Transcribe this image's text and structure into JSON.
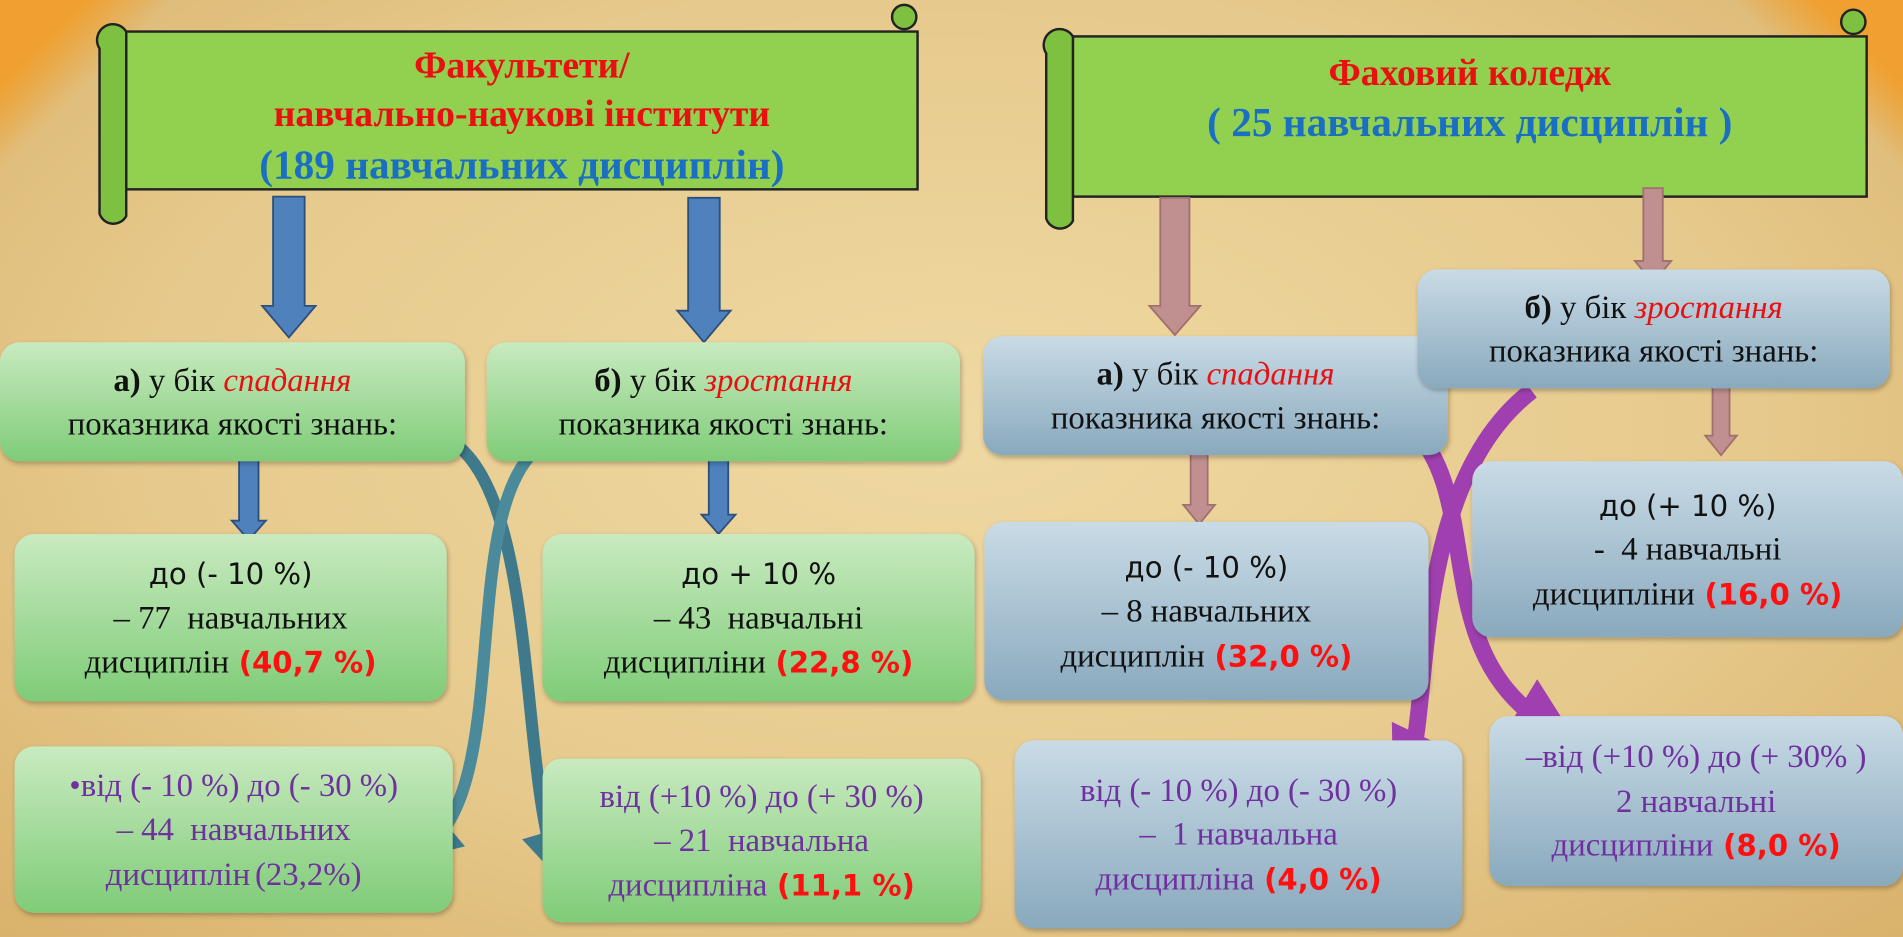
{
  "left": {
    "title": [
      "Факультети/",
      "навчально-наукові  інститути",
      "(189 навчальних дисциплін)"
    ],
    "decrease": {
      "marker": "а)",
      "prefix": " у бік ",
      "direction": "спадання",
      "line2": "показника якості знань:"
    },
    "increase": {
      "marker": "б)",
      "prefix": " у бік ",
      "direction": "зростання",
      "line2": "показника якості знань:"
    },
    "decrease_items": [
      {
        "range": "до (- 10 %)",
        "count": "– 77  навчальних",
        "unit": "дисциплін",
        "percent": "(40,7 %)"
      },
      {
        "range": "•від (- 10 %) до (- 30 %)",
        "count": "– 44  навчальних",
        "unit": "дисциплін",
        "percent": "(23,2%)"
      }
    ],
    "increase_items": [
      {
        "range": "до + 10 %",
        "count": "– 43  навчальні",
        "unit": "дисципліни",
        "percent": "(22,8 %)"
      },
      {
        "range": "від (+10 %) до (+ 30 %)",
        "count": "– 21  навчальна",
        "unit": "дисципліна",
        "percent": "(11,1 %)"
      }
    ]
  },
  "right": {
    "title": [
      "Фаховий коледж",
      "( 25 навчальних дисциплін )"
    ],
    "decrease": {
      "marker": "а)",
      "prefix": " у бік ",
      "direction": "спадання",
      "line2": "показника якості знань:"
    },
    "increase": {
      "marker": "б)",
      "prefix": " у бік ",
      "direction": "зростання",
      "line2": "показника якості знань:"
    },
    "decrease_items": [
      {
        "range": "до (- 10 %)",
        "count": "– 8 навчальних",
        "unit": "дисциплін",
        "percent": "(32,0 %)"
      },
      {
        "range": "від (- 10 %) до (- 30 %)",
        "count": "–  1 навчальна",
        "unit": "дисципліна",
        "percent": "(4,0 %)"
      }
    ],
    "increase_items": [
      {
        "range": "до (+ 10 %)",
        "count": "-  4 навчальні",
        "unit": "дисципліни",
        "percent": "(16,0 %)"
      },
      {
        "range": "–від (+10 %) до (+ 30% )",
        "count": "2 навчальні",
        "unit": "дисципліни",
        "percent": "(8,0 %)"
      }
    ]
  }
}
